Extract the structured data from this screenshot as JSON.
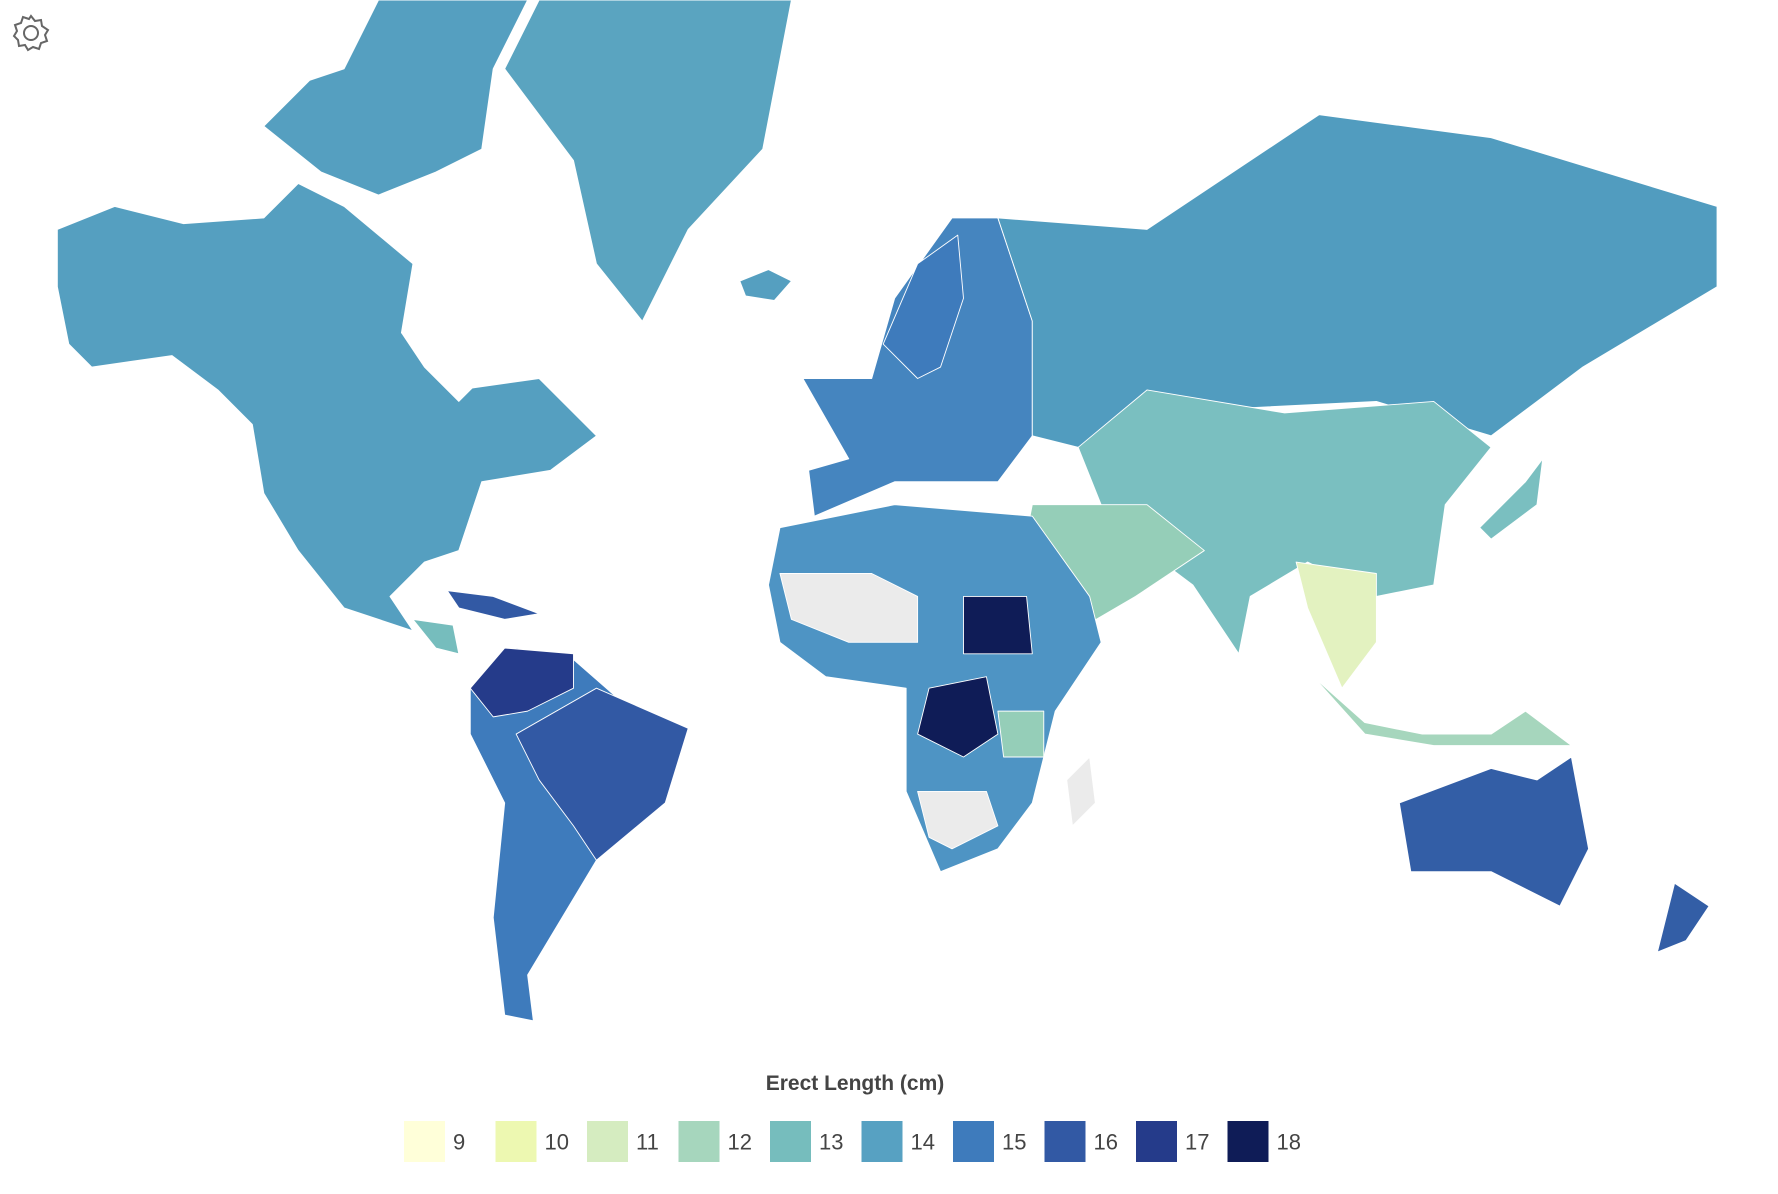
{
  "legend": {
    "title": "Erect Length (cm)",
    "values": [
      9,
      10,
      11,
      12,
      13,
      14,
      15,
      16,
      17,
      18
    ],
    "colors": [
      "#ffffd9",
      "#edf8b1",
      "#d5ecc0",
      "#a6d6bd",
      "#76bdbd",
      "#57a1c2",
      "#3e7bbc",
      "#3259a4",
      "#253b8a",
      "#0f1c57"
    ]
  }
}
